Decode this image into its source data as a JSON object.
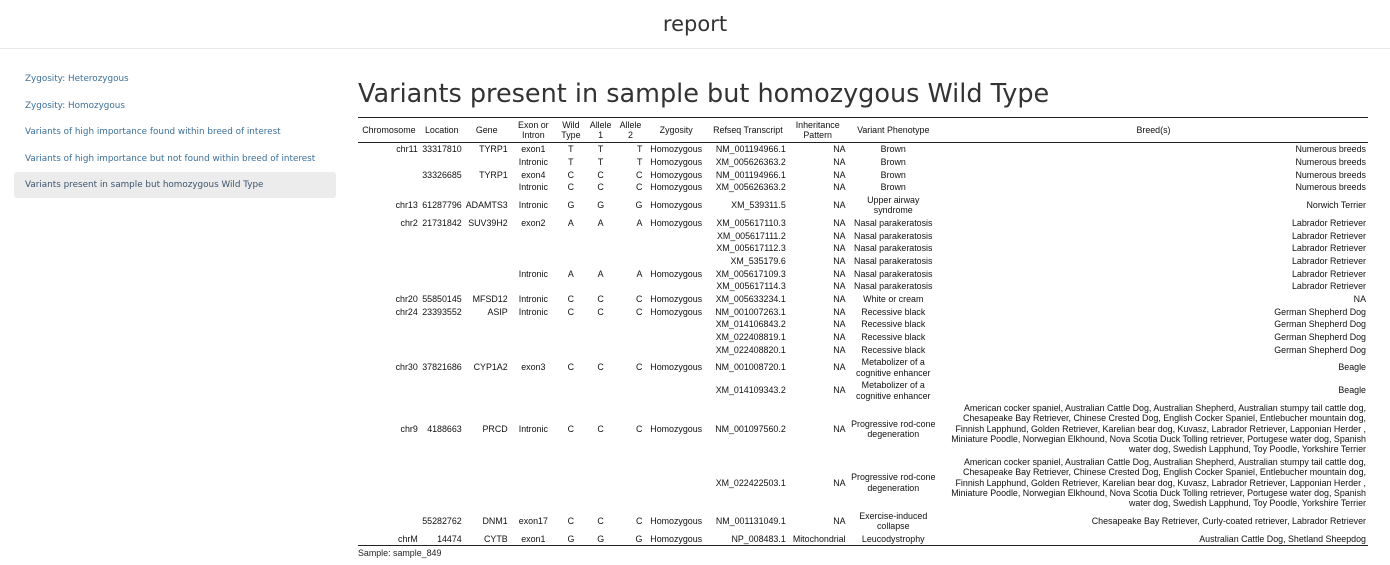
{
  "app": {
    "title": "report"
  },
  "sidebar": {
    "items": [
      {
        "label": "Zygosity: Heterozygous"
      },
      {
        "label": "Zygosity: Homozygous"
      },
      {
        "label": "Variants of high importance found within breed of interest"
      },
      {
        "label": "Variants of high importance but not found within breed of interest"
      },
      {
        "label": "Variants present in sample but homozygous Wild Type"
      }
    ]
  },
  "main": {
    "title": "Variants present in sample but homozygous Wild Type",
    "sample_note": "Sample: sample_849",
    "table": {
      "columns": [
        "Chromosome",
        "Location",
        "Gene",
        "Exon or Intron",
        "Wild Type",
        "Allele 1",
        "Allele 2",
        "Zygosity",
        "Refseq Transcript",
        "Inheritance Pattern",
        "Variant Phenotype",
        "Breed(s)"
      ],
      "rows": [
        [
          "chr11",
          "33317810",
          "TYRP1",
          "exon1",
          "T",
          "T",
          "T",
          "Homozygous",
          "NM_001194966.1",
          "NA",
          "Brown",
          "Numerous breeds"
        ],
        [
          "",
          "",
          "",
          "Intronic",
          "T",
          "T",
          "T",
          "Homozygous",
          "XM_005626363.2",
          "NA",
          "Brown",
          "Numerous breeds"
        ],
        [
          "",
          "33326685",
          "TYRP1",
          "exon4",
          "C",
          "C",
          "C",
          "Homozygous",
          "NM_001194966.1",
          "NA",
          "Brown",
          "Numerous breeds"
        ],
        [
          "",
          "",
          "",
          "Intronic",
          "C",
          "C",
          "C",
          "Homozygous",
          "XM_005626363.2",
          "NA",
          "Brown",
          "Numerous breeds"
        ],
        [
          "chr13",
          "61287796",
          "ADAMTS3",
          "Intronic",
          "G",
          "G",
          "G",
          "Homozygous",
          "XM_539311.5",
          "NA",
          "Upper airway syndrome",
          "Norwich Terrier"
        ],
        [
          "chr2",
          "21731842",
          "SUV39H2",
          "exon2",
          "A",
          "A",
          "A",
          "Homozygous",
          "XM_005617110.3",
          "NA",
          "Nasal parakeratosis",
          "Labrador Retriever"
        ],
        [
          "",
          "",
          "",
          "",
          "",
          "",
          "",
          "",
          "XM_005617111.2",
          "NA",
          "Nasal parakeratosis",
          "Labrador Retriever"
        ],
        [
          "",
          "",
          "",
          "",
          "",
          "",
          "",
          "",
          "XM_005617112.3",
          "NA",
          "Nasal parakeratosis",
          "Labrador Retriever"
        ],
        [
          "",
          "",
          "",
          "",
          "",
          "",
          "",
          "",
          "XM_535179.6",
          "NA",
          "Nasal parakeratosis",
          "Labrador Retriever"
        ],
        [
          "",
          "",
          "",
          "Intronic",
          "A",
          "A",
          "A",
          "Homozygous",
          "XM_005617109.3",
          "NA",
          "Nasal parakeratosis",
          "Labrador Retriever"
        ],
        [
          "",
          "",
          "",
          "",
          "",
          "",
          "",
          "",
          "XM_005617114.3",
          "NA",
          "Nasal parakeratosis",
          "Labrador Retriever"
        ],
        [
          "chr20",
          "55850145",
          "MFSD12",
          "Intronic",
          "C",
          "C",
          "C",
          "Homozygous",
          "XM_005633234.1",
          "NA",
          "White or cream",
          "NA"
        ],
        [
          "chr24",
          "23393552",
          "ASIP",
          "Intronic",
          "C",
          "C",
          "C",
          "Homozygous",
          "NM_001007263.1",
          "NA",
          "Recessive black",
          "German Shepherd Dog"
        ],
        [
          "",
          "",
          "",
          "",
          "",
          "",
          "",
          "",
          "XM_014106843.2",
          "NA",
          "Recessive black",
          "German Shepherd Dog"
        ],
        [
          "",
          "",
          "",
          "",
          "",
          "",
          "",
          "",
          "XM_022408819.1",
          "NA",
          "Recessive black",
          "German Shepherd Dog"
        ],
        [
          "",
          "",
          "",
          "",
          "",
          "",
          "",
          "",
          "XM_022408820.1",
          "NA",
          "Recessive black",
          "German Shepherd Dog"
        ],
        [
          "chr30",
          "37821686",
          "CYP1A2",
          "exon3",
          "C",
          "C",
          "C",
          "Homozygous",
          "NM_001008720.1",
          "NA",
          "Metabolizer of a cognitive enhancer",
          "Beagle"
        ],
        [
          "",
          "",
          "",
          "",
          "",
          "",
          "",
          "",
          "XM_014109343.2",
          "NA",
          "Metabolizer of a cognitive enhancer",
          "Beagle"
        ],
        [
          "chr9",
          "4188663",
          "PRCD",
          "Intronic",
          "C",
          "C",
          "C",
          "Homozygous",
          "NM_001097560.2",
          "NA",
          "Progressive rod-cone degeneration",
          "American cocker spaniel, Australian Cattle Dog, Australian Shepherd, Australian stumpy tail cattle dog, Chesapeake Bay Retriever, Chinese Crested Dog, English Cocker Spaniel, Entlebucher mountain dog, Finnish Lapphund, Golden Retriever, Karelian bear dog, Kuvasz, Labrador Retriever, Lapponian Herder , Miniature Poodle, Norwegian Elkhound, Nova Scotia Duck Tolling retriever, Portugese water dog, Spanish water dog, Swedish Lapphund, Toy Poodle, Yorkshire Terrier"
        ],
        [
          "",
          "",
          "",
          "",
          "",
          "",
          "",
          "",
          "XM_022422503.1",
          "NA",
          "Progressive rod-cone degeneration",
          "American cocker spaniel, Australian Cattle Dog, Australian Shepherd, Australian stumpy tail cattle dog, Chesapeake Bay Retriever, Chinese Crested Dog, English Cocker Spaniel, Entlebucher mountain dog, Finnish Lapphund, Golden Retriever, Karelian bear dog, Kuvasz, Labrador Retriever, Lapponian Herder , Miniature Poodle, Norwegian Elkhound, Nova Scotia Duck Tolling retriever, Portugese water dog, Spanish water dog, Swedish Lapphund, Toy Poodle, Yorkshire Terrier"
        ],
        [
          "",
          "55282762",
          "DNM1",
          "exon17",
          "C",
          "C",
          "C",
          "Homozygous",
          "NM_001131049.1",
          "NA",
          "Exercise-induced collapse",
          "Chesapeake Bay Retriever, Curly-coated retriever, Labrador Retriever"
        ],
        [
          "chrM",
          "14474",
          "CYTB",
          "exon1",
          "G",
          "G",
          "G",
          "Homozygous",
          "NP_008483.1",
          "Mitochondrial",
          "Leucodystrophy",
          "Australian Cattle Dog, Shetland Sheepdog"
        ]
      ]
    }
  },
  "colors": {
    "link": "#3a6f9a",
    "active_bg": "#ececec",
    "text": "#222222"
  }
}
